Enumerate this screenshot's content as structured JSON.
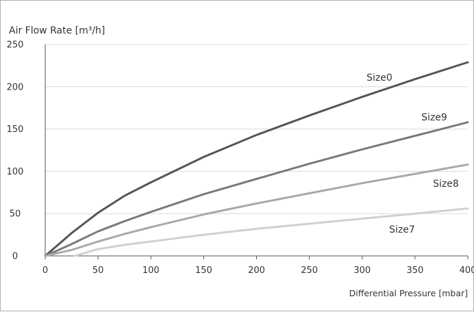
{
  "chart_data": {
    "type": "line",
    "title": "",
    "ylabel": "Air Flow Rate [m³/h]",
    "xlabel": "Differential Pressure [mbar]",
    "xlim": [
      0,
      400
    ],
    "ylim": [
      0,
      250
    ],
    "xticks": [
      0,
      50,
      100,
      150,
      200,
      250,
      300,
      350,
      400
    ],
    "yticks": [
      0,
      50,
      100,
      150,
      200,
      250
    ],
    "grid": "horizontal",
    "series": [
      {
        "name": "Size0",
        "color": "#555555",
        "points": [
          [
            0,
            0
          ],
          [
            25,
            27
          ],
          [
            50,
            51
          ],
          [
            75,
            71
          ],
          [
            100,
            87
          ],
          [
            150,
            117
          ],
          [
            200,
            143
          ],
          [
            250,
            166
          ],
          [
            300,
            188
          ],
          [
            350,
            209
          ],
          [
            400,
            229
          ]
        ]
      },
      {
        "name": "Size9",
        "color": "#7a7a7a",
        "points": [
          [
            0,
            0
          ],
          [
            25,
            14
          ],
          [
            50,
            29
          ],
          [
            75,
            41
          ],
          [
            100,
            52
          ],
          [
            150,
            73
          ],
          [
            200,
            91
          ],
          [
            250,
            109
          ],
          [
            300,
            126
          ],
          [
            350,
            142
          ],
          [
            400,
            158
          ]
        ]
      },
      {
        "name": "Size8",
        "color": "#a8a8a8",
        "points": [
          [
            0,
            0
          ],
          [
            25,
            7
          ],
          [
            50,
            17
          ],
          [
            75,
            26
          ],
          [
            100,
            34
          ],
          [
            150,
            49
          ],
          [
            200,
            62
          ],
          [
            250,
            74
          ],
          [
            300,
            86
          ],
          [
            350,
            97
          ],
          [
            400,
            108
          ]
        ]
      },
      {
        "name": "Size7",
        "color": "#d0d0d0",
        "points": [
          [
            28,
            0
          ],
          [
            50,
            8
          ],
          [
            75,
            13
          ],
          [
            100,
            17
          ],
          [
            150,
            25
          ],
          [
            200,
            32
          ],
          [
            250,
            38
          ],
          [
            300,
            44
          ],
          [
            350,
            50
          ],
          [
            400,
            56
          ]
        ]
      }
    ]
  }
}
